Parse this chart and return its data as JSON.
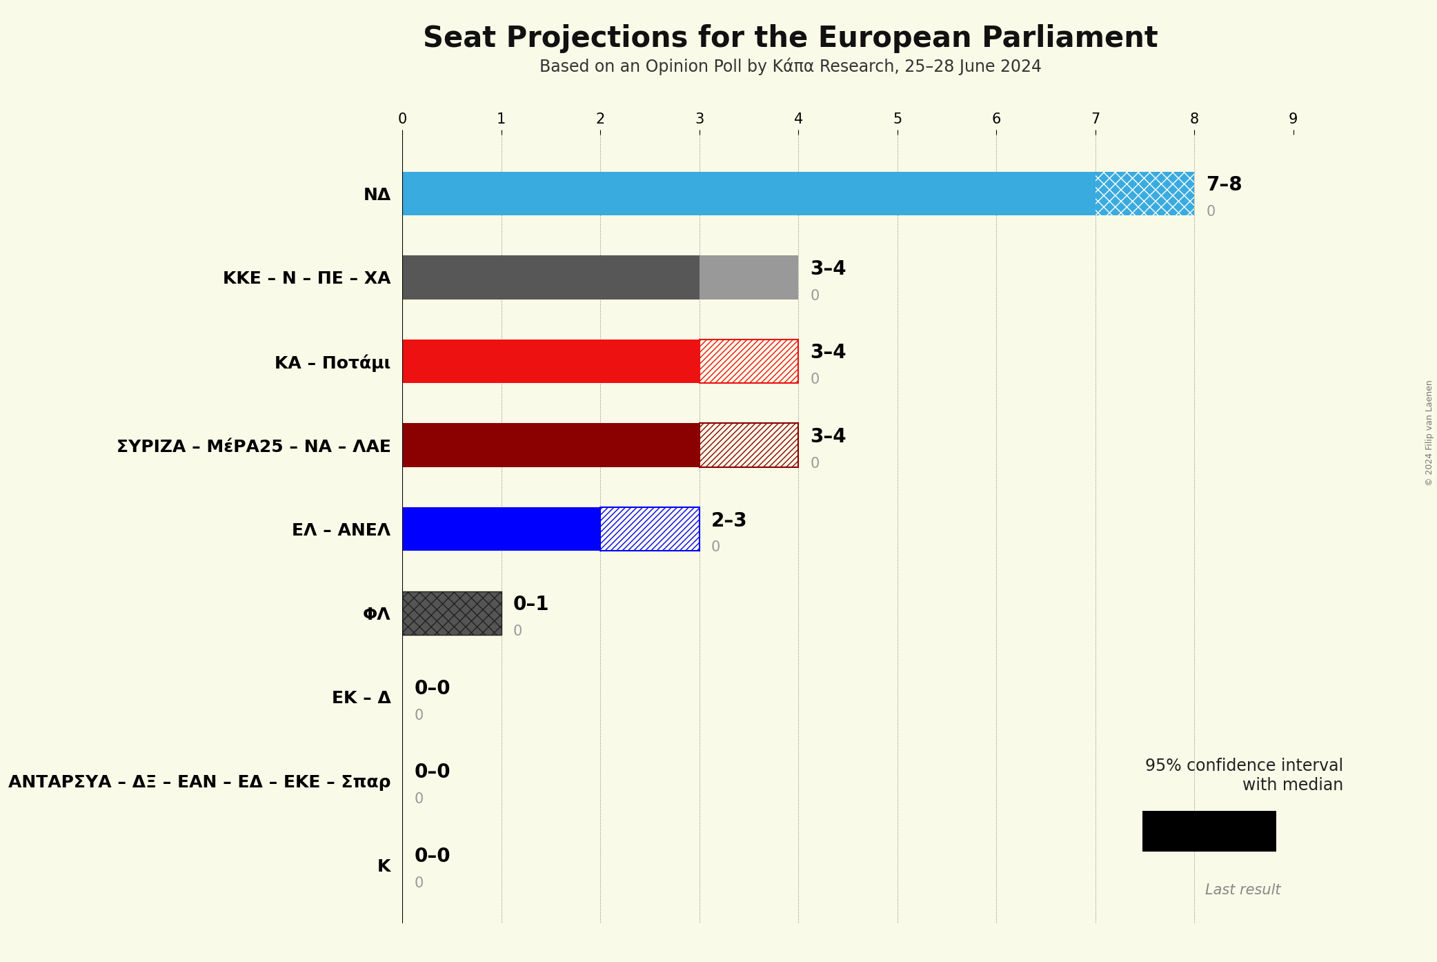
{
  "title": "Seat Projections for the European Parliament",
  "subtitle": "Based on an Opinion Poll by Κάπα Research, 25–28 June 2024",
  "background_color": "#FAFAE8",
  "parties": [
    "ΝΔ",
    "ΚΚΕ – Ν – ΠΕ – ΧΑ",
    "ΚΑ – Ποτάμι",
    "ΣΥΡΙΖΑ – ΜέΡΑ25 – ΝΑ – ΛΑΕ",
    "ΕΛ – ΑΝΕΛ",
    "ΦΛ",
    "ΕΚ – Δ",
    "ΑΝΤΑΡΣΥΑ – ΔΞ – ΕΑΝ – ΕΔ – ΕΚΕ – Σπαρ",
    "Κ"
  ],
  "median_seats": [
    7,
    3,
    3,
    3,
    2,
    0,
    0,
    0,
    0
  ],
  "max_seats": [
    8,
    4,
    4,
    4,
    3,
    1,
    0,
    0,
    0
  ],
  "last_results": [
    0,
    0,
    0,
    0,
    0,
    0,
    0,
    0,
    0
  ],
  "bar_colors": [
    "#3AABDF",
    "#575757",
    "#EE1111",
    "#8B0000",
    "#0000FF",
    "#333333",
    "#333333",
    "#333333",
    "#333333"
  ],
  "range_labels": [
    "7–8",
    "3–4",
    "3–4",
    "3–4",
    "2–3",
    "0–1",
    "0–0",
    "0–0",
    "0–0"
  ],
  "xlim_max": 9,
  "xtick_positions": [
    0,
    1,
    2,
    3,
    4,
    5,
    6,
    7,
    8,
    9
  ],
  "copyright": "© 2024 Filip van Laenen",
  "legend_label": "95% confidence interval\nwith median",
  "last_result_label": "Last result"
}
